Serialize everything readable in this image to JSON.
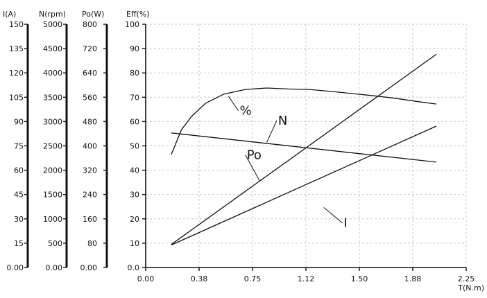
{
  "chart_data": {
    "type": "line",
    "title": "",
    "x_axis": {
      "label": "T(N.m)",
      "range": [
        0,
        2.25
      ],
      "ticks": [
        "0.00",
        "0.38",
        "0.75",
        "1.12",
        "1.50",
        "1.88",
        "2.25"
      ],
      "grid": true
    },
    "y_axes": [
      {
        "id": "I",
        "label": "I(A)",
        "range": [
          0,
          150
        ],
        "ticks": [
          "0.00",
          "15",
          "30",
          "45",
          "60",
          "75",
          "90",
          "105",
          "120",
          "135",
          "150"
        ]
      },
      {
        "id": "N",
        "label": "N(rpm)",
        "range": [
          0,
          5000
        ],
        "ticks": [
          "0.00",
          "500",
          "1000",
          "1500",
          "2000",
          "2500",
          "3000",
          "3500",
          "4000",
          "4500",
          "5000"
        ]
      },
      {
        "id": "Po",
        "label": "Po(W)",
        "range": [
          0,
          800
        ],
        "ticks": [
          "0.00",
          "80",
          "160",
          "240",
          "320",
          "400",
          "480",
          "560",
          "640",
          "720",
          "800"
        ]
      },
      {
        "id": "Eff",
        "label": "Eff(%)",
        "range": [
          0,
          100
        ],
        "ticks": [
          "0.0",
          "10",
          "20",
          "30",
          "40",
          "50",
          "60",
          "70",
          "80",
          "90",
          "100"
        ],
        "grid": true
      }
    ],
    "series": [
      {
        "name": "N",
        "axis": "N",
        "x": [
          0.18,
          2.04
        ],
        "y": [
          2767,
          2167
        ],
        "label_anchor": [
          0.85,
          2570
        ],
        "label_text_pos": [
          0.92,
          3020
        ]
      },
      {
        "name": "%",
        "axis": "Eff",
        "x": [
          0.18,
          0.25,
          0.32,
          0.42,
          0.55,
          0.7,
          0.85,
          1.0,
          1.15,
          1.3,
          1.45,
          1.6,
          1.75,
          1.9,
          2.04
        ],
        "y": [
          46.5,
          56.5,
          62,
          67.5,
          71.3,
          73.2,
          73.8,
          73.4,
          73.2,
          72.4,
          71.5,
          70.6,
          69.6,
          68.3,
          67.2
        ],
        "label_anchor": [
          0.58,
          70.5
        ],
        "label_text_pos": [
          0.65,
          64.5
        ]
      },
      {
        "name": "Po",
        "axis": "Po",
        "x": [
          0.18,
          2.04
        ],
        "y": [
          76,
          701
        ],
        "label_anchor": [
          0.8,
          285
        ],
        "label_text_pos": [
          0.7,
          370
        ]
      },
      {
        "name": "I",
        "axis": "I",
        "x": [
          0.18,
          2.04
        ],
        "y": [
          13.9,
          87.2
        ],
        "label_anchor": [
          1.25,
          37
        ],
        "label_text_pos": [
          1.38,
          27.5
        ]
      }
    ]
  }
}
